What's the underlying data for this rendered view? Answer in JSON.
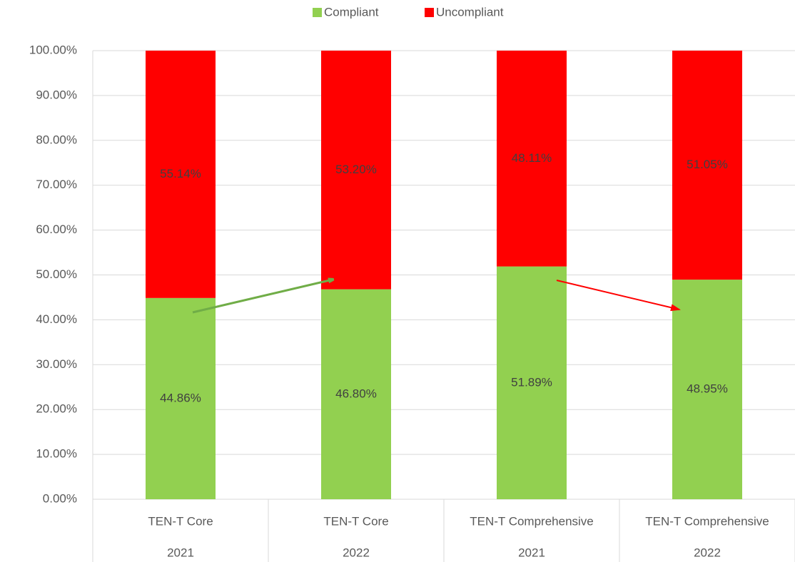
{
  "chart_data": {
    "type": "stacked_bar",
    "categories": [
      "TEN-T Core",
      "TEN-T Core",
      "TEN-T Comprehensive",
      "TEN-T Comprehensive"
    ],
    "category_groups": [
      "2021",
      "2022",
      "2021",
      "2022"
    ],
    "series": [
      {
        "name": "Compliant",
        "color": "#92d050",
        "values": [
          44.86,
          46.8,
          51.89,
          48.95
        ],
        "value_labels": [
          "44.86%",
          "46.80%",
          "51.89%",
          "48.95%"
        ]
      },
      {
        "name": "Uncompliant",
        "color": "#ff0000",
        "values": [
          55.14,
          53.2,
          48.11,
          51.05
        ],
        "value_labels": [
          "55.14%",
          "53.20%",
          "48.11%",
          "51.05%"
        ]
      }
    ],
    "ylim": [
      0,
      100
    ],
    "yticks": [
      {
        "value": 0,
        "label": "0.00%"
      },
      {
        "value": 10,
        "label": "10.00%"
      },
      {
        "value": 20,
        "label": "20.00%"
      },
      {
        "value": 30,
        "label": "30.00%"
      },
      {
        "value": 40,
        "label": "40.00%"
      },
      {
        "value": 50,
        "label": "50.00%"
      },
      {
        "value": 60,
        "label": "60.00%"
      },
      {
        "value": 70,
        "label": "70.00%"
      },
      {
        "value": 80,
        "label": "80.00%"
      },
      {
        "value": 90,
        "label": "90.00%"
      },
      {
        "value": 100,
        "label": "100.00%"
      }
    ],
    "grid": true,
    "legend": "top"
  }
}
